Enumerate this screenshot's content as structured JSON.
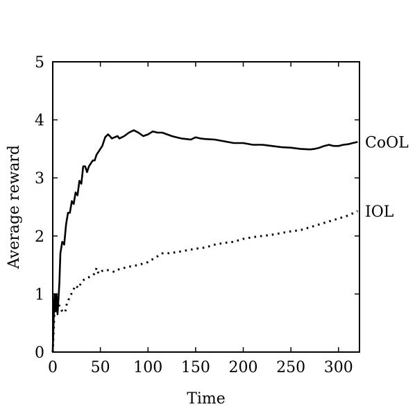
{
  "chart_data": {
    "type": "line",
    "title": "",
    "xlabel": "Time",
    "ylabel": "Average reward",
    "xlim": [
      0,
      322
    ],
    "ylim": [
      0,
      5
    ],
    "xticks": [
      0,
      50,
      100,
      150,
      200,
      250,
      300
    ],
    "yticks": [
      0,
      1,
      2,
      3,
      4,
      5
    ],
    "grid": false,
    "legend": "none; series names printed at the right end of each line",
    "series": [
      {
        "name": "CoOL",
        "style": "solid",
        "x": [
          0,
          1,
          2,
          3,
          4,
          5,
          6,
          7,
          8,
          10,
          12,
          14,
          16,
          18,
          20,
          22,
          24,
          26,
          28,
          30,
          32,
          34,
          36,
          38,
          40,
          42,
          44,
          46,
          48,
          50,
          52,
          55,
          58,
          60,
          62,
          65,
          68,
          70,
          75,
          80,
          85,
          90,
          95,
          100,
          105,
          110,
          115,
          120,
          125,
          130,
          135,
          140,
          145,
          150,
          155,
          160,
          170,
          180,
          190,
          200,
          210,
          220,
          230,
          240,
          250,
          260,
          270,
          275,
          280,
          285,
          290,
          295,
          300,
          305,
          310,
          315,
          320
        ],
        "y": [
          0.0,
          0.6,
          1.0,
          0.7,
          1.0,
          0.65,
          0.9,
          1.2,
          1.7,
          1.9,
          1.85,
          2.2,
          2.4,
          2.4,
          2.6,
          2.55,
          2.75,
          2.7,
          2.95,
          2.9,
          3.2,
          3.2,
          3.1,
          3.2,
          3.25,
          3.3,
          3.3,
          3.4,
          3.45,
          3.5,
          3.55,
          3.7,
          3.75,
          3.72,
          3.68,
          3.7,
          3.72,
          3.68,
          3.72,
          3.78,
          3.82,
          3.78,
          3.72,
          3.75,
          3.8,
          3.78,
          3.78,
          3.75,
          3.72,
          3.7,
          3.68,
          3.67,
          3.66,
          3.7,
          3.68,
          3.67,
          3.66,
          3.63,
          3.6,
          3.6,
          3.57,
          3.57,
          3.55,
          3.53,
          3.52,
          3.5,
          3.49,
          3.5,
          3.52,
          3.55,
          3.57,
          3.55,
          3.55,
          3.57,
          3.58,
          3.6,
          3.62
        ]
      },
      {
        "name": "IOL",
        "style": "dotted",
        "x": [
          0,
          1,
          2,
          3,
          4,
          5,
          7,
          9,
          11,
          13,
          15,
          18,
          21,
          24,
          27,
          30,
          33,
          36,
          40,
          44,
          46,
          48,
          52,
          56,
          60,
          65,
          70,
          75,
          80,
          90,
          100,
          105,
          110,
          115,
          120,
          130,
          140,
          150,
          160,
          170,
          180,
          190,
          200,
          210,
          220,
          230,
          240,
          250,
          260,
          270,
          280,
          290,
          300,
          310,
          320
        ],
        "y": [
          0.0,
          0.4,
          0.75,
          0.85,
          0.95,
          0.8,
          0.8,
          0.72,
          0.7,
          0.68,
          0.85,
          0.95,
          1.05,
          1.15,
          1.1,
          1.2,
          1.25,
          1.28,
          1.3,
          1.35,
          1.45,
          1.35,
          1.4,
          1.42,
          1.4,
          1.38,
          1.43,
          1.45,
          1.47,
          1.5,
          1.55,
          1.6,
          1.65,
          1.7,
          1.7,
          1.72,
          1.75,
          1.78,
          1.8,
          1.85,
          1.88,
          1.9,
          1.95,
          1.98,
          2.0,
          2.02,
          2.05,
          2.08,
          2.1,
          2.15,
          2.2,
          2.25,
          2.3,
          2.35,
          2.43
        ]
      }
    ]
  }
}
